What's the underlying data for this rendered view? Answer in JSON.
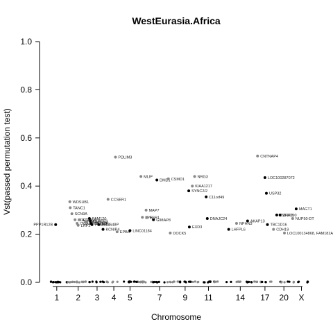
{
  "chart_data": {
    "type": "scatter",
    "title": "WestEurasia.Africa",
    "xlabel": "Chromosome",
    "ylabel": "Vst(passed permutation test)",
    "ylim": [
      0,
      1
    ],
    "yticks": [
      "0.0",
      "0.2",
      "0.4",
      "0.6",
      "0.8",
      "1.0"
    ],
    "xticks": [
      "1",
      "2",
      "3",
      "4",
      "5",
      "7",
      "9",
      "11",
      "14",
      "17",
      "20",
      "X"
    ],
    "colors": {
      "odd": "#000000",
      "even": "#888888"
    },
    "points": [
      {
        "label": "PPP1R12B",
        "chr": "1",
        "pos": 0.45,
        "y": 0.24
      },
      {
        "label": "WDSUB1",
        "chr": "2",
        "pos": 0.1,
        "y": 0.335
      },
      {
        "label": "TANC1",
        "chr": "2",
        "pos": 0.12,
        "y": 0.31
      },
      {
        "label": "SCN9A",
        "chr": "2",
        "pos": 0.2,
        "y": 0.285
      },
      {
        "label": "PDE11A",
        "chr": "2",
        "pos": 0.35,
        "y": 0.26
      },
      {
        "label": "ITGA6",
        "chr": "2",
        "pos": 0.45,
        "y": 0.245
      },
      {
        "label": "ATP5G3",
        "chr": "2",
        "pos": 0.55,
        "y": 0.26
      },
      {
        "label": "LRP2",
        "chr": "2",
        "pos": 0.5,
        "y": 0.237
      },
      {
        "label": "TMEM178A",
        "chr": "2",
        "pos": 0.85,
        "y": 0.249
      },
      {
        "label": "PCGF1",
        "chr": "2",
        "pos": 0.92,
        "y": 0.252
      },
      {
        "label": "FAM120",
        "chr": "3",
        "pos": 0.05,
        "y": 0.265
      },
      {
        "label": "PLSCR1",
        "chr": "3",
        "pos": 0.1,
        "y": 0.255
      },
      {
        "label": "CNTN3",
        "chr": "3",
        "pos": 0.15,
        "y": 0.245
      },
      {
        "label": "PSMB10",
        "chr": "3",
        "pos": 0.2,
        "y": 0.24
      },
      {
        "label": "PRSS48P",
        "chr": "3",
        "pos": 0.6,
        "y": 0.24
      },
      {
        "label": "KCNIP4",
        "chr": "3",
        "pos": 0.85,
        "y": 0.22
      },
      {
        "label": "CCSER1",
        "chr": "4",
        "pos": 0.15,
        "y": 0.345
      },
      {
        "label": "PDLIM3",
        "chr": "4",
        "pos": 0.6,
        "y": 0.52
      },
      {
        "label": "EPBA",
        "chr": "4",
        "pos": 0.7,
        "y": 0.21
      },
      {
        "label": "LINC01184",
        "chr": "5",
        "pos": 0.5,
        "y": 0.215
      },
      {
        "label": "MLIP",
        "chr": "6",
        "pos": 0.2,
        "y": 0.44
      },
      {
        "label": "EYS",
        "chr": "6",
        "pos": 0.3,
        "y": 0.27
      },
      {
        "label": "MAP7",
        "chr": "6",
        "pos": 0.55,
        "y": 0.3
      },
      {
        "label": "ESR1",
        "chr": "6",
        "pos": 0.6,
        "y": 0.27
      },
      {
        "label": "GIMAP8",
        "chr": "7",
        "pos": 0.05,
        "y": 0.26
      },
      {
        "label": "DMD1",
        "chr": "7",
        "pos": 0.3,
        "y": 0.425
      },
      {
        "label": "CSMD1",
        "chr": "8",
        "pos": 0.15,
        "y": 0.43
      },
      {
        "label": "DOCK5",
        "chr": "8",
        "pos": 0.3,
        "y": 0.205
      },
      {
        "label": "NRG3",
        "chr": "10",
        "pos": 0.3,
        "y": 0.44
      },
      {
        "label": "KIAA1217",
        "chr": "10",
        "pos": 0.1,
        "y": 0.4
      },
      {
        "label": "SYNC2/2",
        "chr": "9",
        "pos": 0.8,
        "y": 0.38
      },
      {
        "label": "EXD3",
        "chr": "9",
        "pos": 0.85,
        "y": 0.23
      },
      {
        "label": "C11orf49",
        "chr": "11",
        "pos": 0.3,
        "y": 0.355
      },
      {
        "label": "DNAJC24",
        "chr": "11",
        "pos": 0.4,
        "y": 0.265
      },
      {
        "label": "LHFPL6",
        "chr": "13",
        "pos": 0.3,
        "y": 0.22
      },
      {
        "label": "NPHN3",
        "chr": "14",
        "pos": 0.1,
        "y": 0.245
      },
      {
        "label": "AKAP13",
        "chr": "15",
        "pos": 0.3,
        "y": 0.255
      },
      {
        "label": "CNTNAP4",
        "chr": "16",
        "pos": 0.5,
        "y": 0.525
      },
      {
        "label": "LOC100287072",
        "chr": "17",
        "pos": 0.5,
        "y": 0.435
      },
      {
        "label": "USP32",
        "chr": "17",
        "pos": 0.7,
        "y": 0.37
      },
      {
        "label": "TBC1D16",
        "chr": "17",
        "pos": 0.85,
        "y": 0.24
      },
      {
        "label": "ZNF763",
        "chr": "19",
        "pos": 0.2,
        "y": 0.28
      },
      {
        "label": "CDH19",
        "chr": "18",
        "pos": 0.7,
        "y": 0.22
      },
      {
        "label": "MAGT1",
        "chr": "X",
        "pos": 0.1,
        "y": 0.305
      },
      {
        "label": "ZNF700",
        "chr": "19",
        "pos": 0.8,
        "y": 0.28
      },
      {
        "label": "NUP50-DT",
        "chr": "22",
        "pos": 0.5,
        "y": 0.265
      },
      {
        "label": "LOC100134868, FAM182A",
        "chr": "20",
        "pos": 0.6,
        "y": 0.205
      }
    ]
  }
}
